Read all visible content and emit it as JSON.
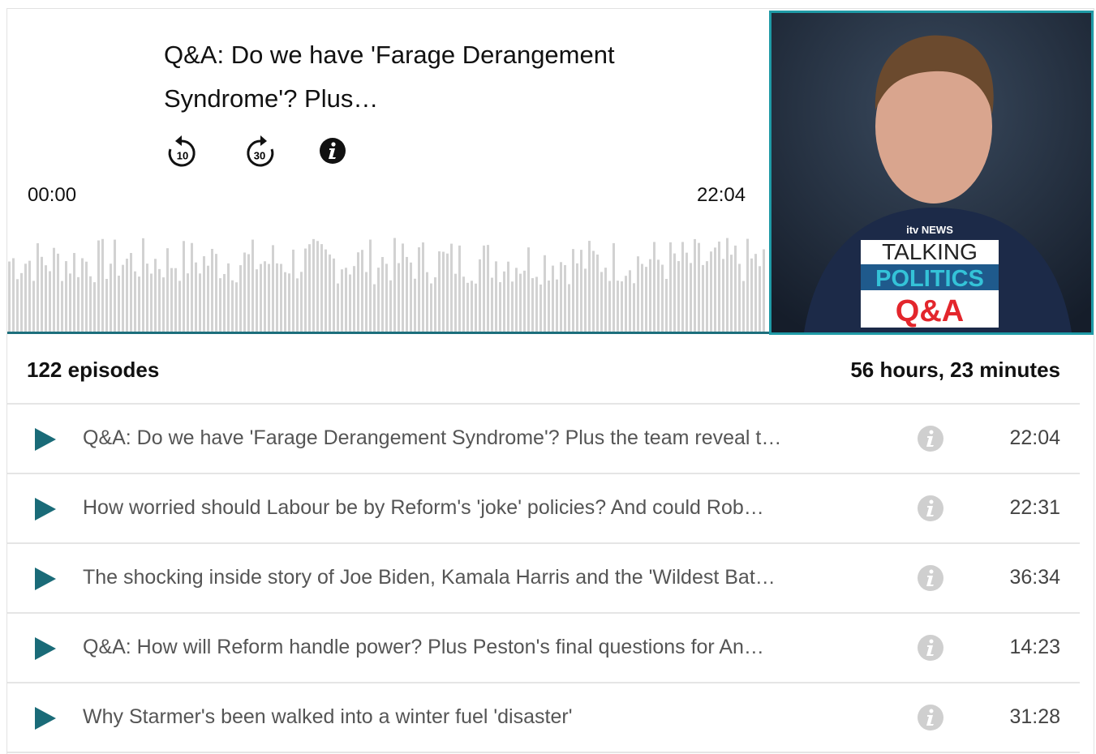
{
  "player": {
    "title": "Q&A: Do we have 'Farage Derangement Syndrome'? Plus…",
    "skip_back": "10",
    "skip_forward": "30",
    "current_time": "00:00",
    "total_time": "22:04"
  },
  "artwork": {
    "brand": "itv NEWS",
    "line1": "TALKING",
    "line2": "POLITICS",
    "line3": "Q&A"
  },
  "summary": {
    "episodes": "122 episodes",
    "duration": "56 hours, 23 minutes"
  },
  "episodes": [
    {
      "title": "Q&A: Do we have 'Farage Derangement Syndrome'? Plus the team reveal t…",
      "duration": "22:04"
    },
    {
      "title": "How worried should Labour be by Reform's 'joke' policies? And could Rob…",
      "duration": "22:31"
    },
    {
      "title": "The shocking inside story of Joe Biden, Kamala Harris and the 'Wildest Bat…",
      "duration": "36:34"
    },
    {
      "title": "Q&A: How will Reform handle power? Plus Peston's final questions for An…",
      "duration": "14:23"
    },
    {
      "title": "Why Starmer's been walked into a winter fuel 'disaster'",
      "duration": "31:28"
    }
  ]
}
